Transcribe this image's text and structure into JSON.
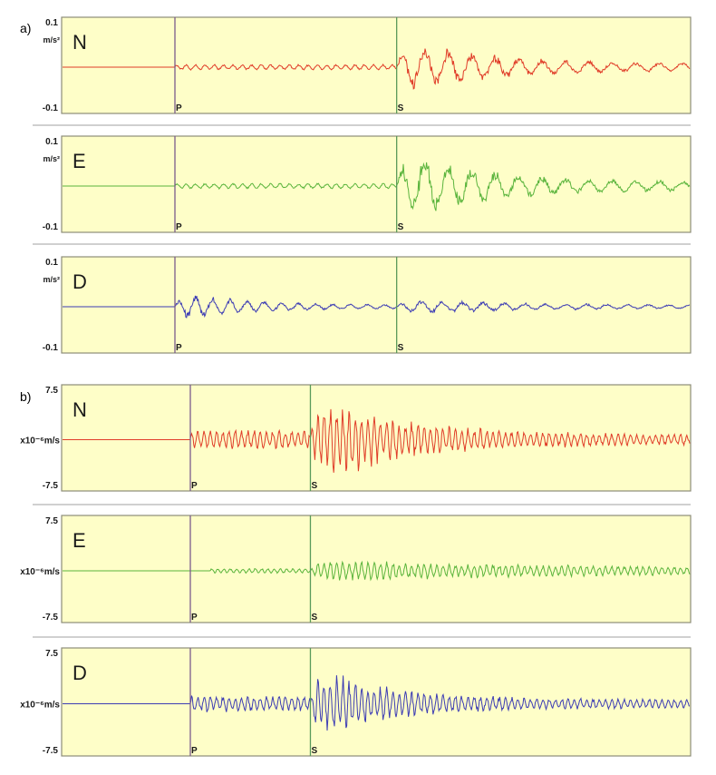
{
  "colors": {
    "panel_fill": "#fefec8",
    "panel_border": "#8c8c78",
    "separator": "#b4b4b4",
    "p_marker": "#7a5a8c",
    "s_marker": "#5a9a5a",
    "N": "#e03c28",
    "E": "#5ab43c",
    "D": "#3c3cb4",
    "label_text": "#1a1a1a"
  },
  "sections": [
    {
      "label": "a)"
    },
    {
      "label": "b)"
    }
  ],
  "chart_data": [
    {
      "type": "line",
      "section": "a)",
      "component": "N",
      "unit": "m/s²",
      "y_ticks": [
        "0.1",
        "-0.1"
      ],
      "ylim": [
        -0.1,
        0.1
      ],
      "markers": [
        {
          "label": "P",
          "t": 0.0
        },
        {
          "label": "S",
          "t": 0.43
        }
      ],
      "t_range": [
        -0.2,
        1.0
      ],
      "waveform": [
        {
          "start": 0.0,
          "end": 0.43,
          "amp": 0.005,
          "freq": 55
        },
        {
          "start": 0.43,
          "end": 1.0,
          "amp": 0.05,
          "freq": 22,
          "decay": 6
        }
      ]
    },
    {
      "type": "line",
      "section": "a)",
      "component": "E",
      "unit": "m/s²",
      "y_ticks": [
        "0.1",
        "-0.1"
      ],
      "ylim": [
        -0.1,
        0.1
      ],
      "markers": [
        {
          "label": "P",
          "t": 0.0
        },
        {
          "label": "S",
          "t": 0.43
        }
      ],
      "t_range": [
        -0.2,
        1.0
      ],
      "waveform": [
        {
          "start": 0.0,
          "end": 0.43,
          "amp": 0.005,
          "freq": 55
        },
        {
          "start": 0.43,
          "end": 1.0,
          "amp": 0.07,
          "freq": 22,
          "decay": 7
        }
      ]
    },
    {
      "type": "line",
      "section": "a)",
      "component": "D",
      "unit": "m/s²",
      "y_ticks": [
        "0.1",
        "-0.1"
      ],
      "ylim": [
        -0.1,
        0.1
      ],
      "markers": [
        {
          "label": "P",
          "t": 0.0
        },
        {
          "label": "S",
          "t": 0.43
        }
      ],
      "t_range": [
        -0.2,
        1.0
      ],
      "waveform": [
        {
          "start": 0.0,
          "end": 0.43,
          "amp": 0.03,
          "freq": 30,
          "decay": 9
        },
        {
          "start": 0.43,
          "end": 1.0,
          "amp": 0.012,
          "freq": 25,
          "decay": 3
        }
      ]
    },
    {
      "type": "line",
      "section": "b)",
      "component": "N",
      "unit": "x10⁻⁶m/s",
      "y_ticks": [
        "7.5",
        "-7.5"
      ],
      "ylim": [
        -7.5,
        7.5
      ],
      "markers": [
        {
          "label": "P",
          "t": 0.0
        },
        {
          "label": "S",
          "t": 0.24
        }
      ],
      "t_range": [
        -0.25,
        1.0
      ],
      "waveform": [
        {
          "start": 0.0,
          "end": 0.24,
          "amp": 1.2,
          "freq": 80
        },
        {
          "start": 0.24,
          "end": 1.0,
          "amp": 5.5,
          "freq": 80,
          "decay": 6
        }
      ]
    },
    {
      "type": "line",
      "section": "b)",
      "component": "E",
      "unit": "x10⁻⁶m/s",
      "y_ticks": [
        "7.5",
        "-7.5"
      ],
      "ylim": [
        -7.5,
        7.5
      ],
      "markers": [
        {
          "label": "P",
          "t": 0.0
        },
        {
          "label": "S",
          "t": 0.24
        }
      ],
      "t_range": [
        -0.25,
        1.0
      ],
      "waveform": [
        {
          "start": 0.04,
          "end": 0.24,
          "amp": 0.3,
          "freq": 80
        },
        {
          "start": 0.24,
          "end": 1.0,
          "amp": 1.2,
          "freq": 80,
          "decay": 1.5
        }
      ]
    },
    {
      "type": "line",
      "section": "b)",
      "component": "D",
      "unit": "x10⁻⁶m/s",
      "y_ticks": [
        "7.5",
        "-7.5"
      ],
      "ylim": [
        -7.5,
        7.5
      ],
      "markers": [
        {
          "label": "P",
          "t": 0.0
        },
        {
          "label": "S",
          "t": 0.24
        }
      ],
      "t_range": [
        -0.25,
        1.0
      ],
      "waveform": [
        {
          "start": 0.0,
          "end": 0.24,
          "amp": 1.0,
          "freq": 80
        },
        {
          "start": 0.24,
          "end": 1.0,
          "amp": 4.5,
          "freq": 80,
          "decay": 7
        }
      ]
    }
  ]
}
